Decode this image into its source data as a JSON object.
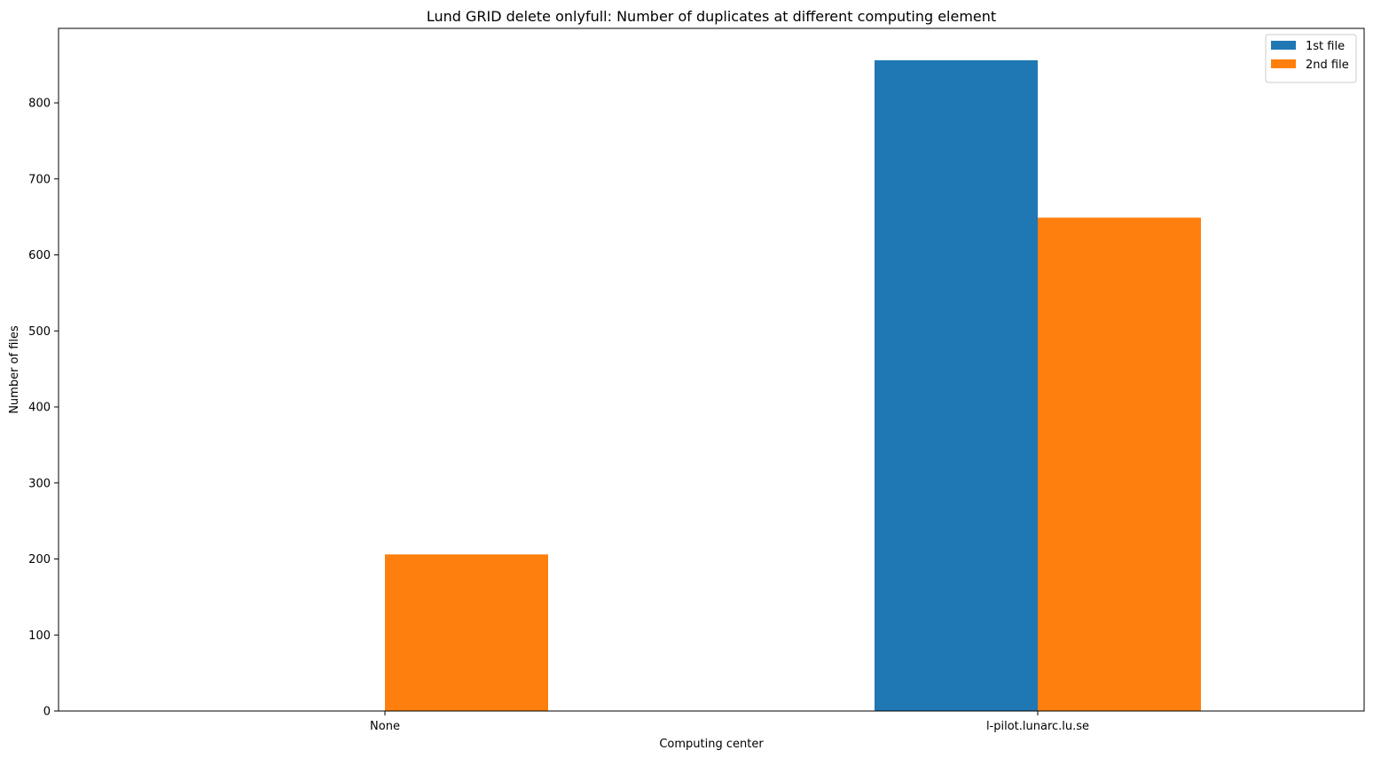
{
  "chart_data": {
    "type": "bar",
    "title": "Lund GRID delete onlyfull: Number of duplicates at different computing element",
    "xlabel": "Computing center",
    "ylabel": "Number of files",
    "categories": [
      "None",
      "l-pilot.lunarc.lu.se"
    ],
    "series": [
      {
        "name": "1st file",
        "color": "#1f77b4",
        "values": [
          0,
          856
        ]
      },
      {
        "name": "2nd file",
        "color": "#ff7f0e",
        "values": [
          206,
          649
        ]
      }
    ],
    "ylim": [
      0,
      898
    ],
    "yticks": [
      0,
      100,
      200,
      300,
      400,
      500,
      600,
      700,
      800
    ],
    "grid": false,
    "legend_position": "top-right"
  }
}
